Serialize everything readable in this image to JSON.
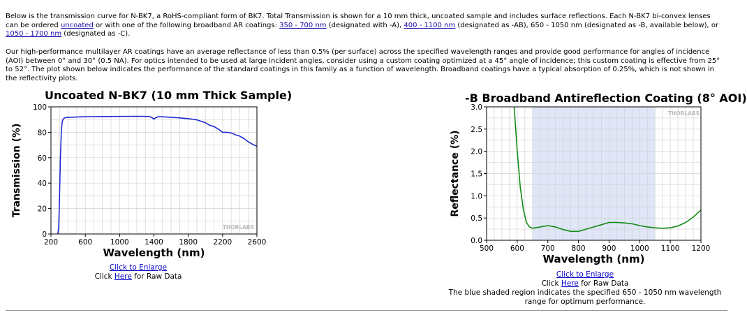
{
  "intro": {
    "p1_a": "Below is the transmission curve for N-BK7, a RoHS-compliant form of BK7. Total Transmission is shown for a 10 mm thick, uncoated sample and includes surface reflections. Each N-BK7 bi-convex lenses can be ordered ",
    "link_uncoated": "uncoated",
    "p1_b": " or with one of the following broadband AR coatings: ",
    "link_a": "350 - 700 nm",
    "p1_c": " (designated with -A), ",
    "link_ab": "400 - 1100 nm",
    "p1_d": " (designated as -AB), 650 - 1050 nm (designated as -B, available below), or ",
    "link_c": "1050 - 1700 nm",
    "p1_e": " (designated as -C).",
    "p2": "Our high-performance multilayer AR coatings have an average reflectance of less than 0.5% (per surface) across the specified wavelength ranges and provide good performance for angles of incidence (AOI) between 0° and 30° (0.5 NA). For optics intended to be used at large incident angles, consider using a custom coating optimized at a 45° angle of incidence; this custom coating is effective from 25° to 52°. The plot shown below indicates the performance of the standard coatings in this family as a function of wavelength. Broadband coatings have a typical absorption of 0.25%, which is not shown in the reflectivity plots."
  },
  "left": {
    "enlarge": "Click to Enlarge",
    "raw_pre": "Click ",
    "raw_link": "Here",
    "raw_post": " for Raw Data"
  },
  "right": {
    "enlarge": "Click to Enlarge",
    "raw_pre": "Click ",
    "raw_link": "Here",
    "raw_post": " for Raw Data",
    "note": "The blue shaded region indicates the specified 650 - 1050 nm wavelength range for optimum performance."
  },
  "colors": {
    "line1": "#1f2ad1",
    "line2": "#138a13",
    "shade": "#dfe6f7",
    "grid": "#d3d3d3"
  },
  "chart_data": [
    {
      "type": "line",
      "title": "Uncoated N-BK7 (10 mm Thick Sample)",
      "xlabel": "Wavelength (nm)",
      "ylabel": "Transmission (%)",
      "xlim": [
        200,
        2600
      ],
      "ylim": [
        0,
        100
      ],
      "xticks": [
        200,
        600,
        1000,
        1400,
        1800,
        2200,
        2600
      ],
      "yticks": [
        0,
        20,
        40,
        60,
        80,
        100
      ],
      "watermark": "THORLABS",
      "series": [
        {
          "x": [
            280,
            290,
            300,
            310,
            320,
            330,
            340,
            350,
            370,
            400,
            500,
            600,
            800,
            1000,
            1200,
            1300,
            1350,
            1380,
            1400,
            1420,
            1450,
            1500,
            1600,
            1700,
            1800,
            1850,
            1900,
            1950,
            2000,
            2050,
            2100,
            2150,
            2200,
            2250,
            2300,
            2350,
            2400,
            2450,
            2500,
            2550,
            2600
          ],
          "y": [
            0,
            5,
            30,
            60,
            80,
            88,
            90,
            91,
            91.5,
            91.8,
            92,
            92.2,
            92.4,
            92.5,
            92.6,
            92.5,
            92.3,
            91.5,
            90.3,
            91.5,
            92.2,
            92.2,
            91.8,
            91.3,
            90.7,
            90.3,
            89.8,
            88.7,
            87.5,
            85.5,
            84.5,
            82.5,
            80,
            80,
            79.5,
            78,
            77,
            75,
            72.5,
            70.5,
            69
          ]
        }
      ]
    },
    {
      "type": "line",
      "title": "-B Broadband Antireflection Coating (8° AOI)",
      "xlabel": "Wavelength (nm)",
      "ylabel": "Reflectance (%)",
      "xlim": [
        500,
        1200
      ],
      "ylim": [
        0,
        3
      ],
      "xticks": [
        500,
        600,
        700,
        800,
        900,
        1000,
        1100,
        1200
      ],
      "yticks": [
        0.0,
        0.5,
        1.0,
        1.5,
        2.0,
        2.5,
        3.0
      ],
      "shaded_region": [
        650,
        1050
      ],
      "watermark": "THORLABS",
      "series": [
        {
          "x": [
            590,
            600,
            610,
            620,
            630,
            640,
            650,
            675,
            700,
            725,
            750,
            775,
            800,
            825,
            850,
            875,
            900,
            925,
            950,
            975,
            1000,
            1025,
            1050,
            1075,
            1100,
            1125,
            1150,
            1175,
            1200
          ],
          "y": [
            3.0,
            2.0,
            1.2,
            0.7,
            0.4,
            0.3,
            0.27,
            0.3,
            0.33,
            0.3,
            0.24,
            0.2,
            0.2,
            0.25,
            0.3,
            0.35,
            0.4,
            0.4,
            0.39,
            0.37,
            0.33,
            0.3,
            0.28,
            0.27,
            0.28,
            0.32,
            0.4,
            0.52,
            0.68
          ]
        }
      ]
    }
  ]
}
